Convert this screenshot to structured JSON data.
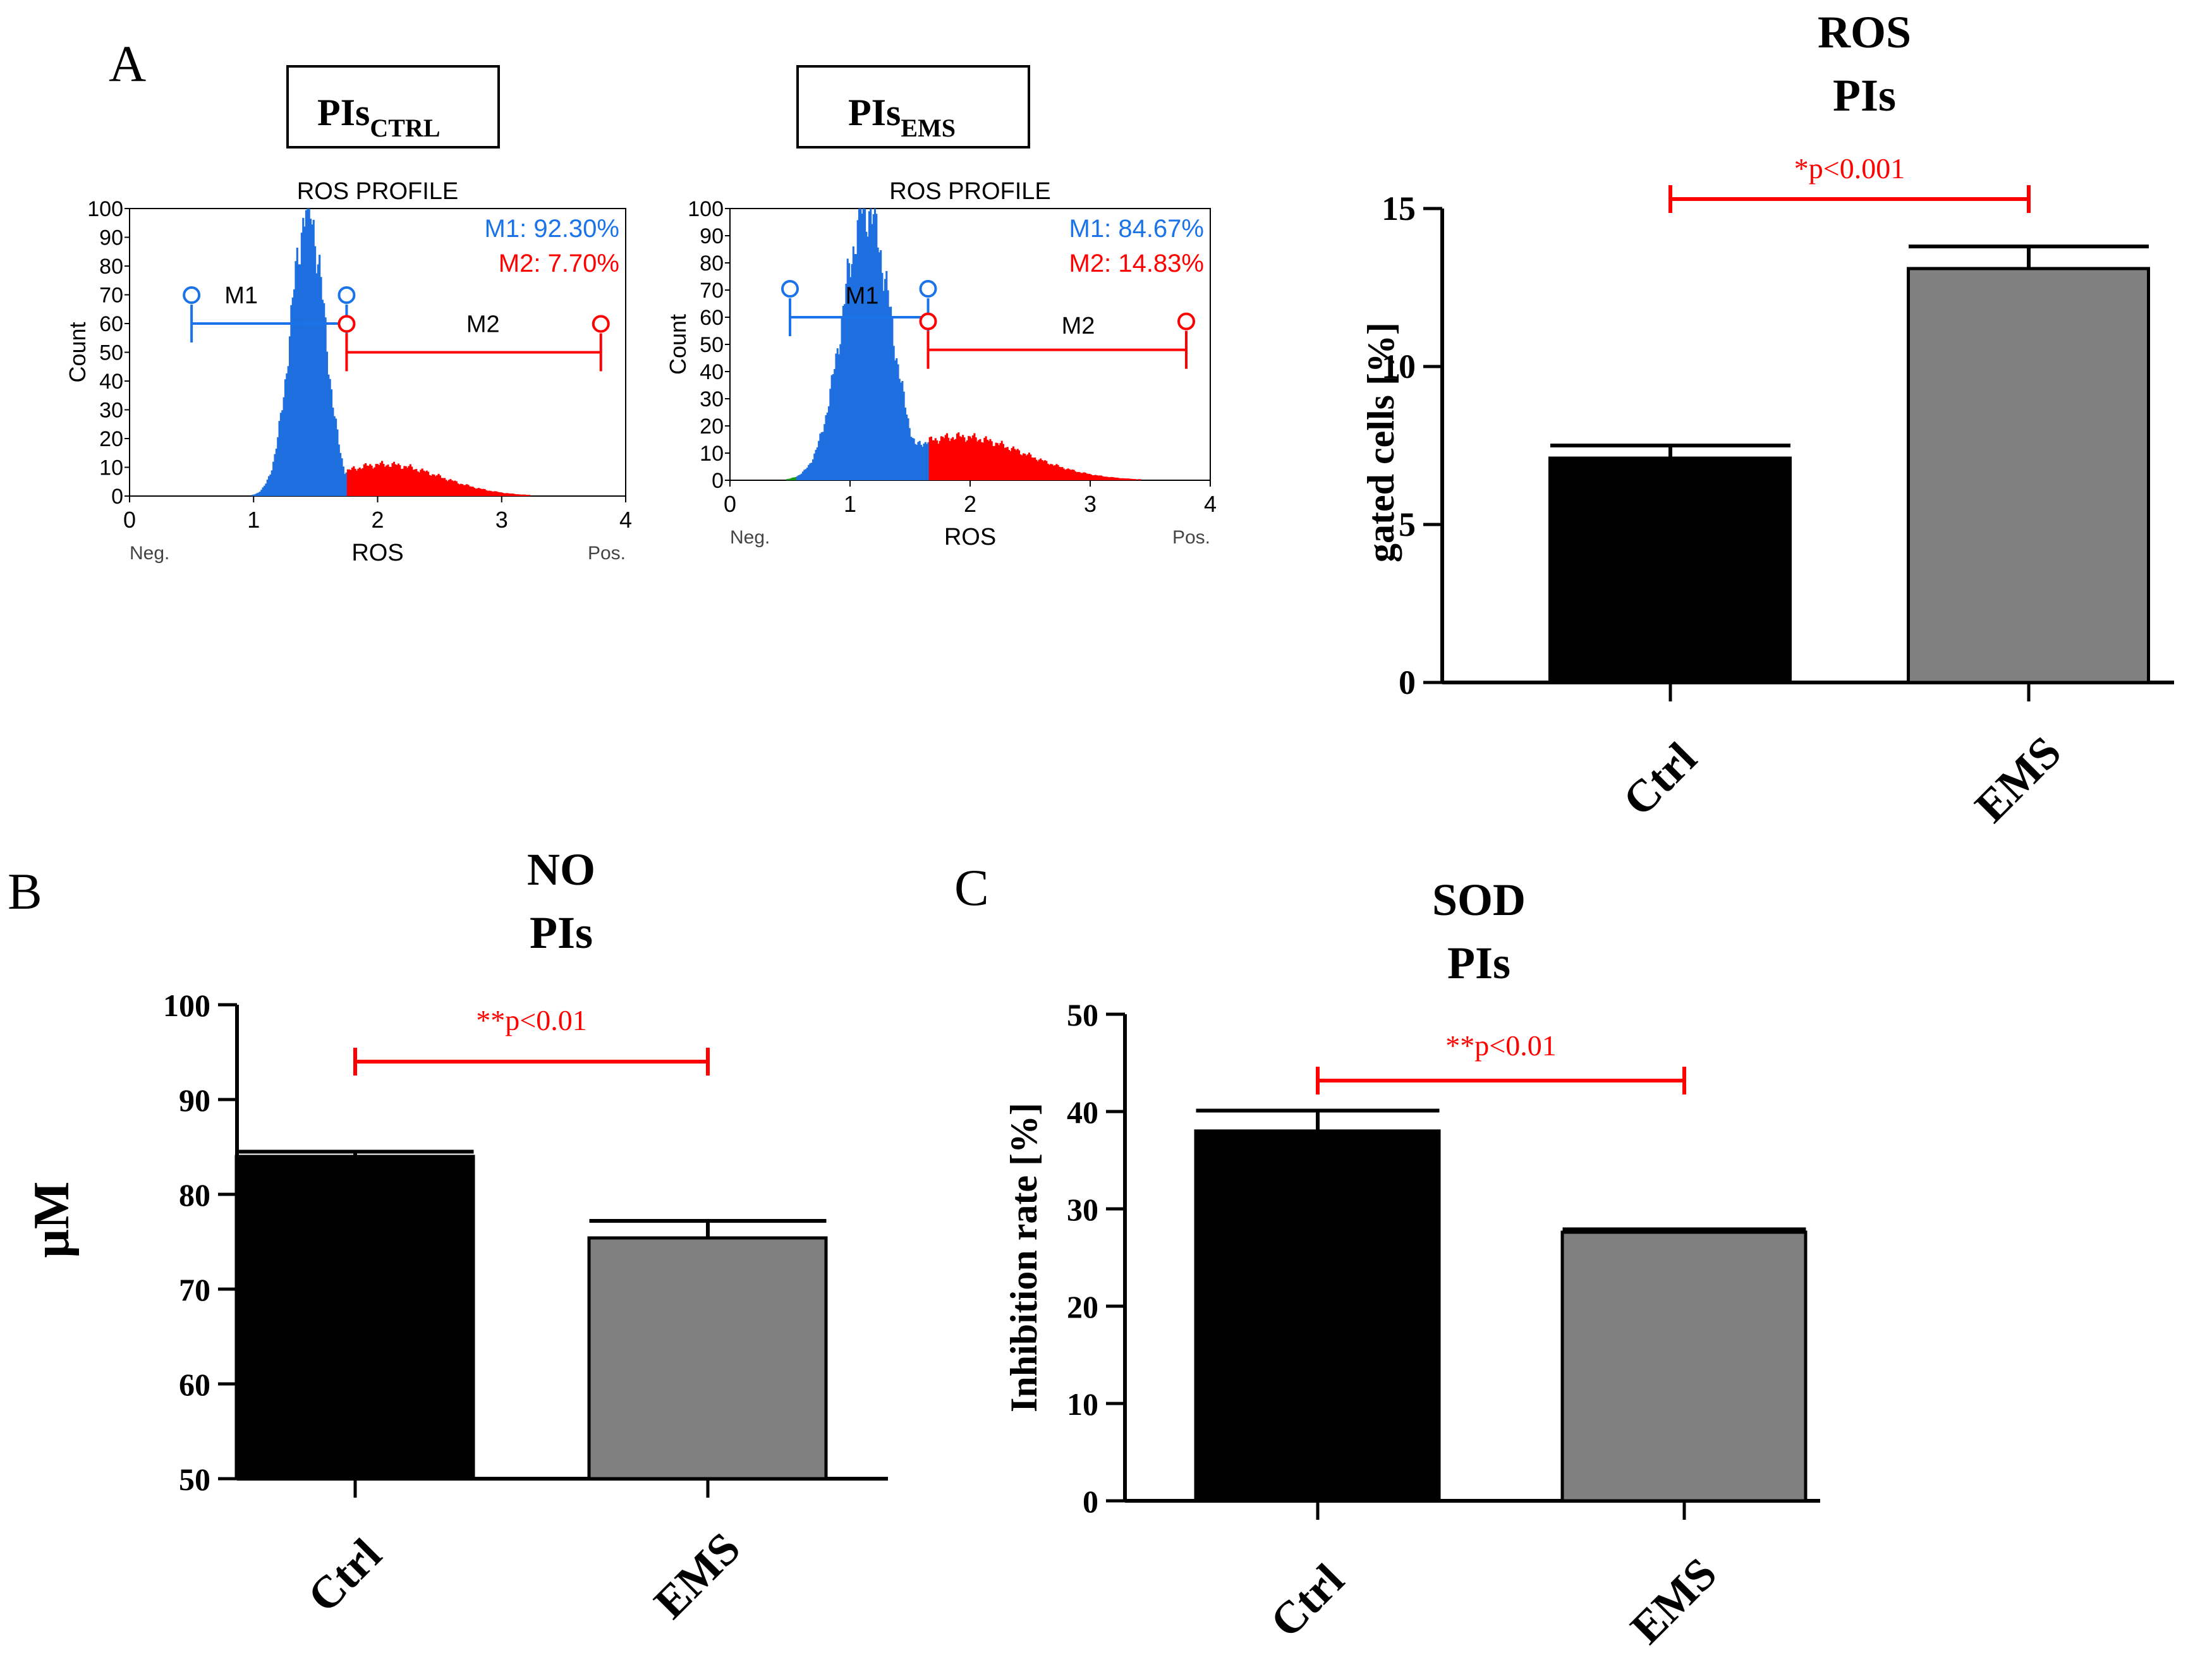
{
  "panel_labels": {
    "a": "A",
    "b": "B",
    "c": "C"
  },
  "colors": {
    "ctrl_bar": "#000000",
    "ems_bar": "#808080",
    "significance": "#ff0000",
    "m1": "#1a73e8",
    "m2": "#ff0000",
    "hist_blue": "#1e6fe0",
    "hist_red": "#ff0000",
    "hist_green": "#1a9a1a"
  },
  "flow": {
    "ctrl": {
      "title_main": "PIs",
      "title_sub": "CTRL",
      "plot_title": "ROS PROFILE",
      "m1_stat": "M1: 92.30%",
      "m2_stat": "M2: 7.70%",
      "m1_label": "M1",
      "m2_label": "M2",
      "ylabel": "Count",
      "xlabel": "ROS",
      "neg": "Neg.",
      "pos": "Pos.",
      "yticks": [
        "0",
        "10",
        "20",
        "30",
        "40",
        "50",
        "60",
        "70",
        "80",
        "90",
        "100"
      ],
      "xticks": [
        "0",
        "1",
        "2",
        "3",
        "4"
      ],
      "m1_range": [
        0.5,
        1.75
      ],
      "m2_range": [
        1.75,
        3.8
      ]
    },
    "ems": {
      "title_main": "PIs",
      "title_sub": "EMS",
      "plot_title": "ROS PROFILE",
      "m1_stat": "M1: 84.67%",
      "m2_stat": "M2: 14.83%",
      "m1_label": "M1",
      "m2_label": "M2",
      "ylabel": "Count",
      "xlabel": "ROS",
      "neg": "Neg.",
      "pos": "Pos.",
      "yticks": [
        "0",
        "10",
        "20",
        "30",
        "40",
        "50",
        "60",
        "70",
        "80",
        "90",
        "100"
      ],
      "xticks": [
        "0",
        "1",
        "2",
        "3",
        "4"
      ],
      "m1_range": [
        0.5,
        1.65
      ],
      "m2_range": [
        1.65,
        3.8
      ]
    }
  },
  "chart_data": [
    {
      "type": "bar",
      "title_line1": "ROS",
      "title_line2": "PIs",
      "categories": [
        "Ctrl",
        "EMS"
      ],
      "values": [
        7.1,
        13.1
      ],
      "errors": [
        0.4,
        0.7
      ],
      "ylabel": "gated cells [%]",
      "ylim": [
        0,
        15
      ],
      "yticks": [
        0,
        5,
        10,
        15
      ],
      "significance": "*p<0.001"
    },
    {
      "type": "bar",
      "title_line1": "NO",
      "title_line2": "PIs",
      "categories": [
        "Ctrl",
        "EMS"
      ],
      "values": [
        84.0,
        75.4
      ],
      "errors": [
        0.5,
        1.8
      ],
      "ylabel": "μM",
      "ylim": [
        50,
        100
      ],
      "yticks": [
        50,
        60,
        70,
        80,
        90,
        100
      ],
      "significance": "**p<0.01"
    },
    {
      "type": "bar",
      "title_line1": "SOD",
      "title_line2": "PIs",
      "categories": [
        "Ctrl",
        "EMS"
      ],
      "values": [
        38.0,
        27.6
      ],
      "errors": [
        2.1,
        0.3
      ],
      "ylabel": "Inhibition rate [%]",
      "ylim": [
        0,
        50
      ],
      "yticks": [
        0,
        10,
        20,
        30,
        40,
        50
      ],
      "significance": "**p<0.01"
    }
  ]
}
